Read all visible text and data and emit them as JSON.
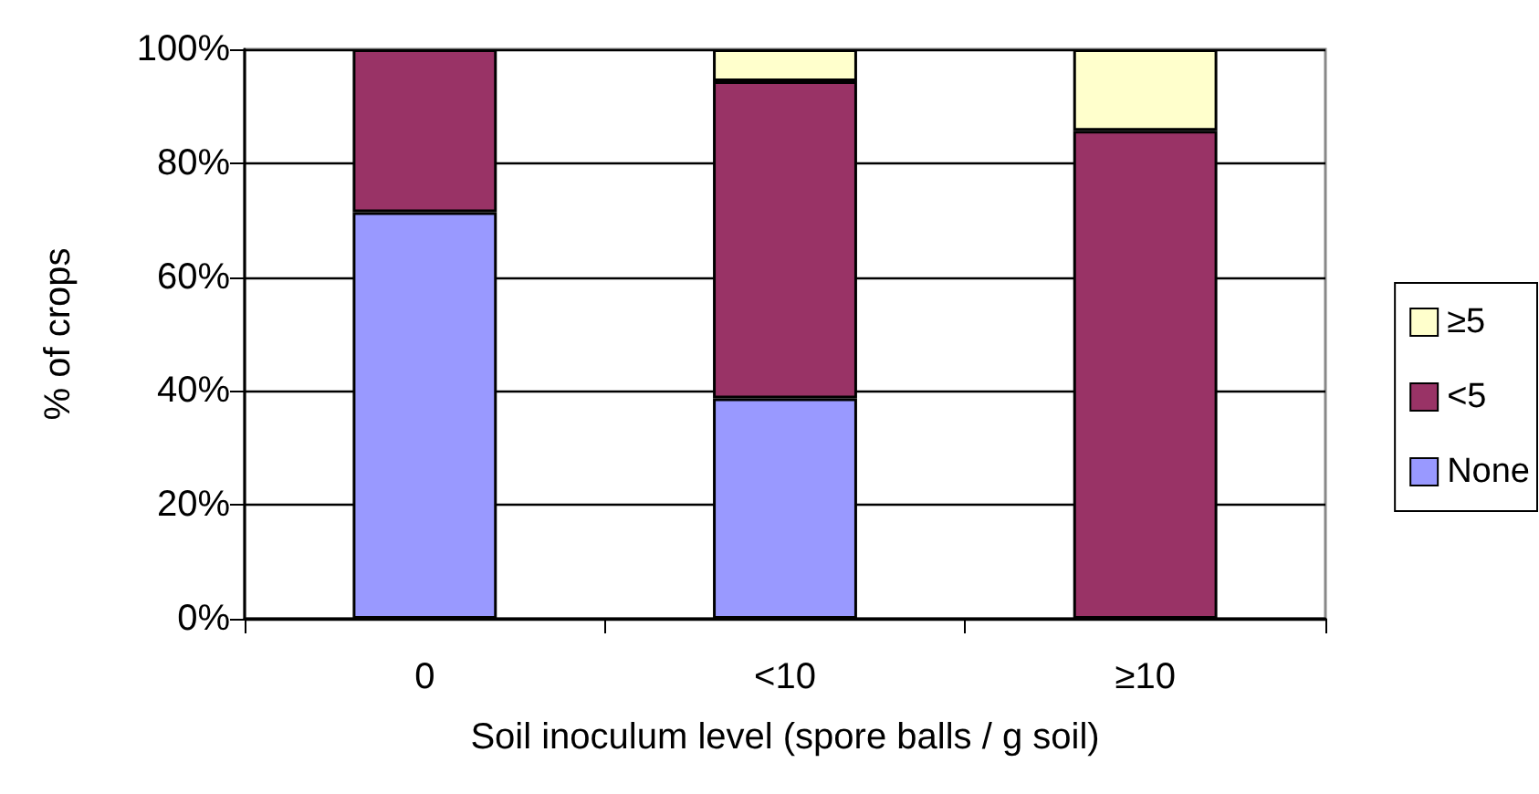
{
  "chart_data": {
    "type": "bar",
    "stacked": true,
    "xlabel": "Soil inoculum level (spore balls / g soil)",
    "ylabel": "% of crops",
    "categories": [
      "0",
      "<10",
      "≥10"
    ],
    "series": [
      {
        "name": "None",
        "color": "#9999ff",
        "values": [
          71.4,
          38.7,
          0
        ]
      },
      {
        "name": "<5",
        "color": "#993366",
        "values": [
          28.6,
          55.7,
          85.7
        ]
      },
      {
        "name": "≥5",
        "color": "#ffffcc",
        "values": [
          0,
          5.6,
          14.3
        ]
      }
    ],
    "ylim": [
      0,
      100
    ],
    "yticks": [
      {
        "value": 0,
        "label": "0%"
      },
      {
        "value": 20,
        "label": "20%"
      },
      {
        "value": 40,
        "label": "40%"
      },
      {
        "value": 60,
        "label": "60%"
      },
      {
        "value": 80,
        "label": "80%"
      },
      {
        "value": 100,
        "label": "100%"
      }
    ],
    "grid": "y",
    "legend": "right"
  }
}
